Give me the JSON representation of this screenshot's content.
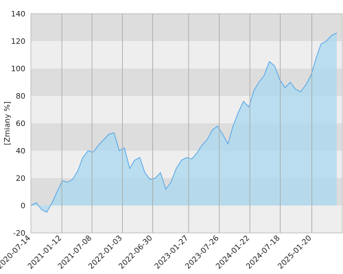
{
  "chart_data": {
    "type": "area",
    "y_label": "[Zmiany %]",
    "x": [
      "2020-07-15",
      "2020-08-15",
      "2020-09-15",
      "2020-10-15",
      "2020-11-15",
      "2020-12-15",
      "2021-01-15",
      "2021-02-15",
      "2021-03-15",
      "2021-04-15",
      "2021-05-15",
      "2021-06-15",
      "2021-07-15",
      "2021-08-15",
      "2021-09-15",
      "2021-10-15",
      "2021-11-15",
      "2021-12-15",
      "2022-01-15",
      "2022-02-15",
      "2022-03-15",
      "2022-04-15",
      "2022-05-15",
      "2022-06-15",
      "2022-07-15",
      "2022-08-15",
      "2022-09-15",
      "2022-10-15",
      "2022-11-15",
      "2022-12-15",
      "2023-01-15",
      "2023-02-15",
      "2023-03-15",
      "2023-04-15",
      "2023-05-15",
      "2023-06-15",
      "2023-07-15",
      "2023-08-15",
      "2023-09-15",
      "2023-10-15",
      "2023-11-15",
      "2023-12-15",
      "2024-01-15",
      "2024-02-15",
      "2024-03-15",
      "2024-04-15",
      "2024-05-15",
      "2024-06-15",
      "2024-07-15",
      "2024-08-15",
      "2024-09-15",
      "2024-10-15",
      "2024-11-15",
      "2024-12-15",
      "2025-01-15",
      "2025-02-15",
      "2025-03-15",
      "2025-04-15",
      "2025-05-15",
      "2025-06-15"
    ],
    "values": [
      0,
      2,
      -3,
      -5,
      2,
      10,
      18,
      17,
      19,
      25,
      35,
      40,
      39,
      44,
      48,
      52,
      53,
      40,
      42,
      27,
      33,
      35,
      24,
      19,
      20,
      24,
      12,
      17,
      27,
      33,
      35,
      34,
      38,
      44,
      48,
      55,
      58,
      52,
      45,
      58,
      68,
      76,
      72,
      84,
      90,
      95,
      105,
      102,
      92,
      86,
      90,
      85,
      83,
      88,
      95,
      108,
      118,
      120,
      124,
      126
    ],
    "color": "#4a9fe6",
    "fill_color": "#a8d8ef",
    "xlim": [
      "2020-07-14",
      "2025-07-18"
    ],
    "xticks": [
      "2020-07-14",
      "2021-01-12",
      "2021-07-08",
      "2022-01-03",
      "2022-06-30",
      "2023-01-27",
      "2023-07-26",
      "2024-01-22",
      "2024-07-18",
      "2025-01-20"
    ],
    "ylim": [
      -20,
      140
    ],
    "yticks": [
      -20,
      0,
      20,
      40,
      60,
      80,
      100,
      120,
      140
    ],
    "band_colors": [
      "#eeeeee",
      "#dddddd"
    ],
    "grid": true
  }
}
